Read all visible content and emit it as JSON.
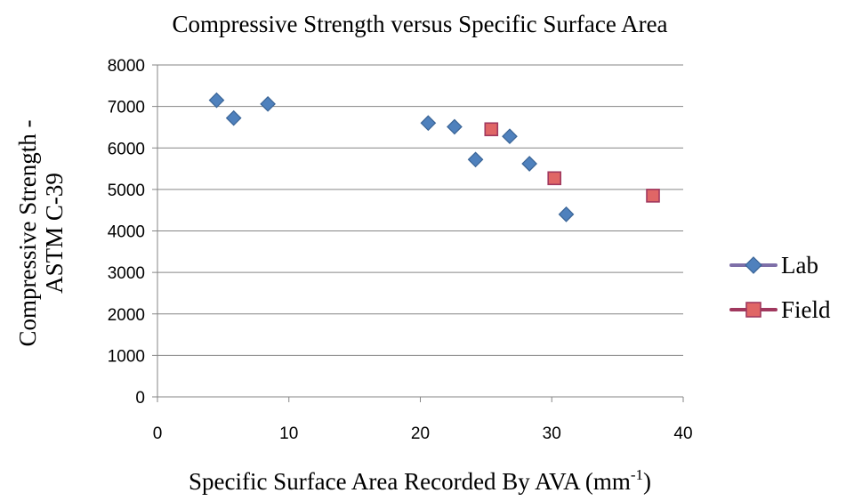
{
  "chart_data": {
    "type": "scatter",
    "title": "Compressive Strength versus Specific Surface Area",
    "xlabel": {
      "base": "Specific Surface Area Recorded By AVA (mm",
      "sup": "-1",
      "tail": ")"
    },
    "ylabel": [
      "Compressive Strength -",
      "ASTM C-39"
    ],
    "xlim": [
      0,
      40
    ],
    "ylim": [
      0,
      8000
    ],
    "xticks": [
      0,
      10,
      20,
      30,
      40
    ],
    "yticks": [
      0,
      1000,
      2000,
      3000,
      4000,
      5000,
      6000,
      7000,
      8000
    ],
    "grid": "horizontal",
    "legend_position": "right",
    "series": [
      {
        "name": "Lab",
        "marker": "diamond",
        "color": "#4F81BD",
        "edge": "#3A6496",
        "line_color": "#7E6FA8",
        "points": [
          [
            4.5,
            7150
          ],
          [
            5.8,
            6720
          ],
          [
            8.4,
            7060
          ],
          [
            20.6,
            6600
          ],
          [
            22.6,
            6510
          ],
          [
            24.2,
            5720
          ],
          [
            26.8,
            6280
          ],
          [
            28.3,
            5620
          ],
          [
            31.1,
            4400
          ]
        ]
      },
      {
        "name": "Field",
        "marker": "square",
        "color": "#E06666",
        "edge": "#A0385E",
        "line_color": "#A0385E",
        "points": [
          [
            25.4,
            6450
          ],
          [
            30.2,
            5270
          ],
          [
            37.7,
            4850
          ]
        ]
      }
    ]
  }
}
